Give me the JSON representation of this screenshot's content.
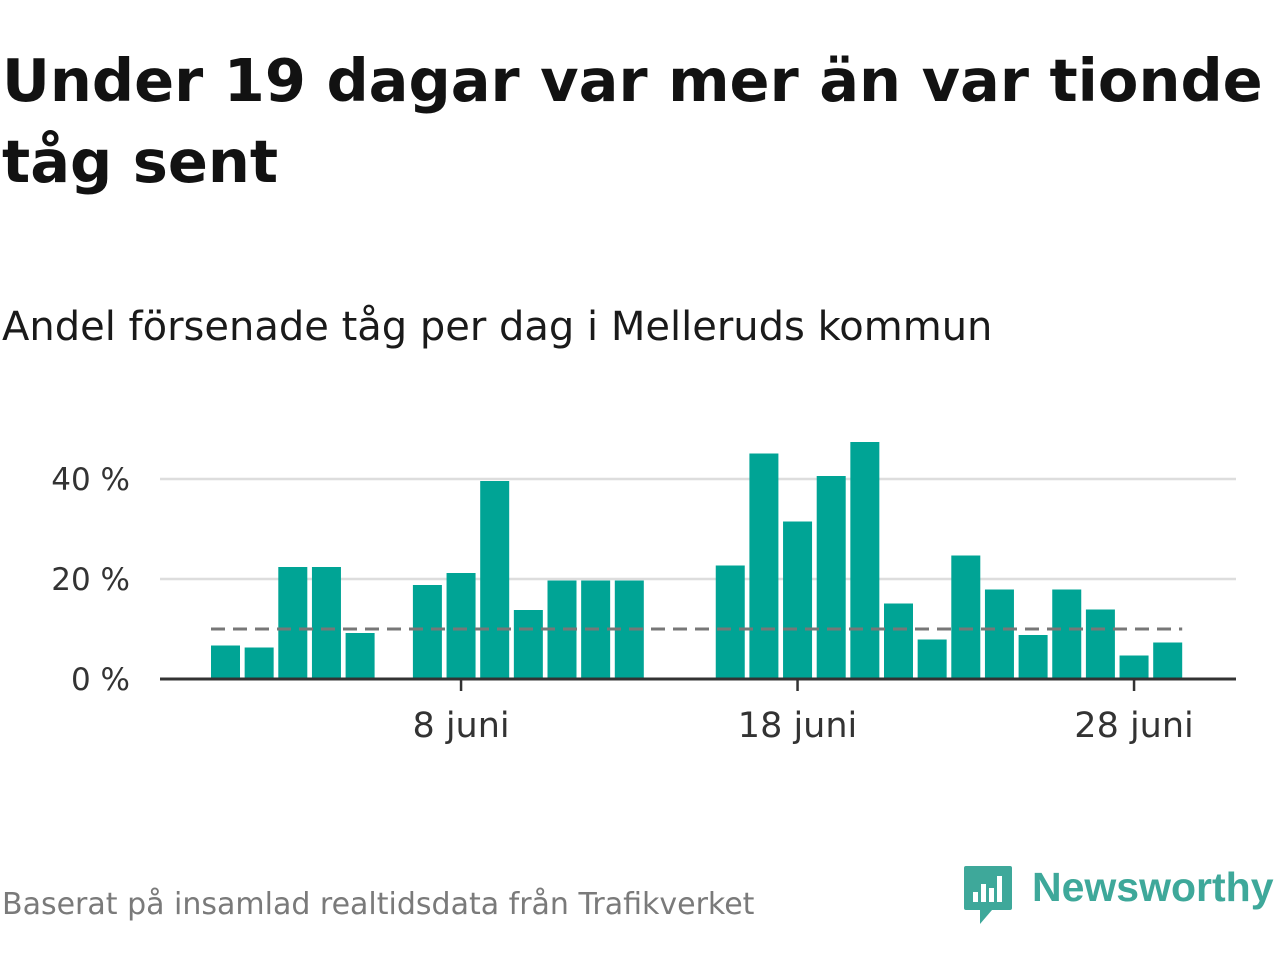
{
  "title": "Under 19 dagar var mer än var tionde tåg sent",
  "subtitle": "Andel försenade tåg per dag i Melleruds kommun",
  "source": "Baserat på insamlad realtidsdata från Trafikverket",
  "brand": {
    "name": "Newsworthy",
    "color": "#3ea89a",
    "icon": "newsworthy-logo-icon"
  },
  "colors": {
    "bar": "#00a495",
    "reference": "#777777",
    "grid": "#dddddd",
    "axis": "#333333"
  },
  "chart_data": {
    "type": "bar",
    "title": "Andel försenade tåg per dag i Melleruds kommun",
    "xlabel": "",
    "ylabel": "",
    "x": [
      1,
      2,
      3,
      4,
      5,
      6,
      7,
      8,
      9,
      10,
      11,
      12,
      13,
      14,
      15,
      16,
      17,
      18,
      19,
      20,
      21,
      22,
      23,
      24,
      25,
      26,
      27,
      28,
      29,
      30
    ],
    "values": [
      6.7,
      6.3,
      22.4,
      22.4,
      9.2,
      null,
      18.8,
      21.2,
      39.6,
      13.8,
      19.7,
      19.7,
      19.7,
      null,
      null,
      22.7,
      45.1,
      31.5,
      40.6,
      47.4,
      15.1,
      7.9,
      24.7,
      17.9,
      8.8,
      17.9,
      13.9,
      4.7,
      7.3,
      null
    ],
    "reference_line": {
      "value": 10,
      "style": "dashed"
    },
    "ylim": [
      0,
      48
    ],
    "yticks": [
      0,
      20,
      40
    ],
    "ytick_labels": [
      "0 %",
      "20 %",
      "40 %"
    ],
    "xticks": [
      8,
      18,
      28
    ],
    "xtick_labels": [
      "8 juni",
      "18 juni",
      "28 juni"
    ],
    "grid": true
  }
}
